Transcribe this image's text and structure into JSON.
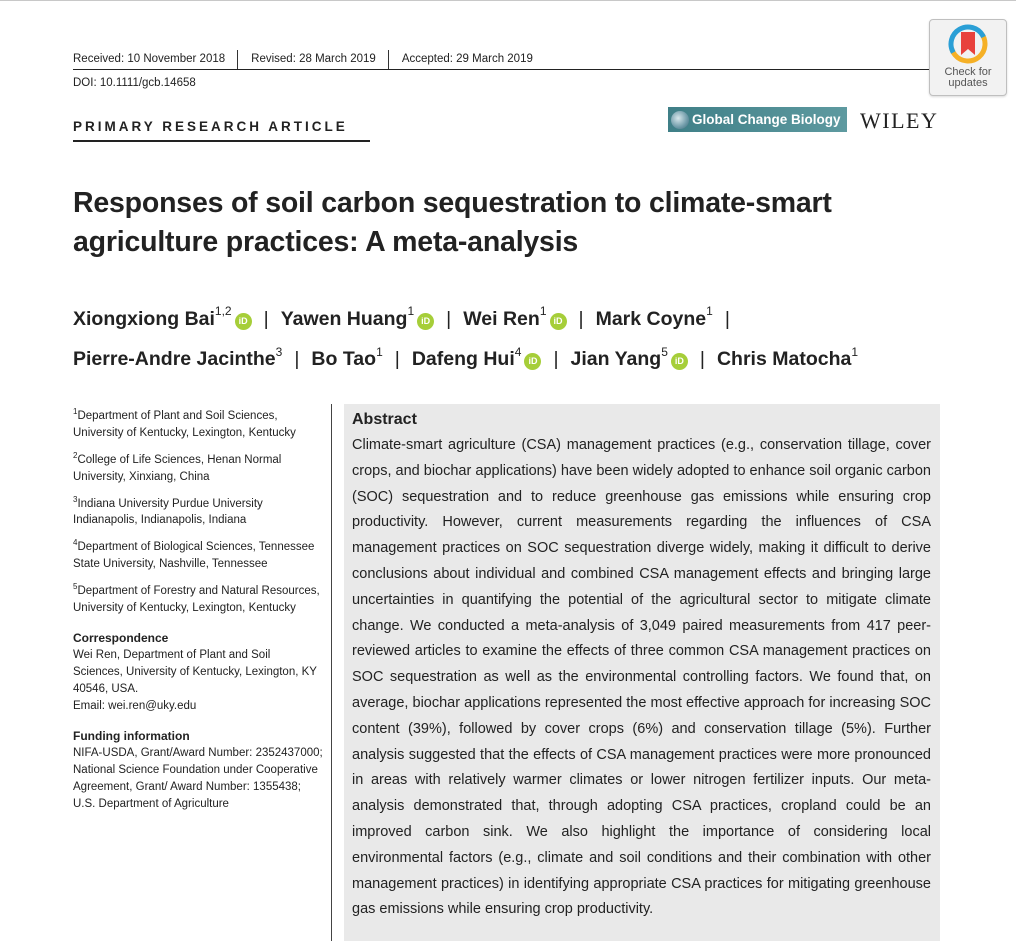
{
  "header": {
    "received": "Received: 10 November 2018",
    "revised": "Revised: 28 March 2019",
    "accepted": "Accepted: 29 March 2019",
    "doi": "DOI: 10.1111/gcb.14658",
    "check_updates_line1": "Check for",
    "check_updates_line2": "updates",
    "article_type": "PRIMARY RESEARCH ARTICLE",
    "journal": "Global Change Biology",
    "publisher": "WILEY"
  },
  "title": "Responses of soil carbon sequestration to climate-smart agriculture practices: A meta-analysis",
  "authors": [
    {
      "name": "Xiongxiong Bai",
      "sup": "1,2",
      "orcid": true
    },
    {
      "name": "Yawen Huang",
      "sup": "1",
      "orcid": true
    },
    {
      "name": "Wei Ren",
      "sup": "1",
      "orcid": true
    },
    {
      "name": "Mark Coyne",
      "sup": "1",
      "orcid": false
    },
    {
      "name": "Pierre-Andre Jacinthe",
      "sup": "3",
      "orcid": false
    },
    {
      "name": "Bo Tao",
      "sup": "1",
      "orcid": false
    },
    {
      "name": "Dafeng Hui",
      "sup": "4",
      "orcid": true
    },
    {
      "name": "Jian Yang",
      "sup": "5",
      "orcid": true
    },
    {
      "name": "Chris Matocha",
      "sup": "1",
      "orcid": false
    }
  ],
  "affiliations": [
    {
      "num": "1",
      "text": "Department of Plant and Soil Sciences, University of Kentucky, Lexington, Kentucky"
    },
    {
      "num": "2",
      "text": "College of Life Sciences, Henan Normal University, Xinxiang, China"
    },
    {
      "num": "3",
      "text": "Indiana University Purdue University Indianapolis, Indianapolis, Indiana"
    },
    {
      "num": "4",
      "text": "Department of Biological Sciences, Tennessee State University, Nashville, Tennessee"
    },
    {
      "num": "5",
      "text": "Department of Forestry and Natural Resources, University of Kentucky, Lexington, Kentucky"
    }
  ],
  "correspondence": {
    "heading": "Correspondence",
    "text": "Wei Ren, Department of Plant and Soil Sciences, University of Kentucky, Lexington, KY 40546, USA.",
    "email": "Email: wei.ren@uky.edu"
  },
  "funding": {
    "heading": "Funding information",
    "text": "NIFA-USDA, Grant/Award Number: 2352437000; National Science Foundation under Cooperative Agreement, Grant/ Award Number: 1355438; U.S. Department of Agriculture"
  },
  "abstract": {
    "heading": "Abstract",
    "text": "Climate-smart agriculture (CSA) management practices (e.g., conservation tillage, cover crops, and biochar applications) have been widely adopted to enhance soil organic carbon (SOC) sequestration and to reduce greenhouse gas emissions while ensuring crop productivity. However, current measurements regarding the influ­ences of CSA management practices on SOC sequestration diverge widely, making it difficult to derive conclusions about individual and combined CSA management ef­fects and bringing large uncertainties in quantifying the potential of the agricultural sector to mitigate climate change. We conducted a meta-analysis of 3,049 paired measurements from 417 peer-reviewed articles to examine the effects of three com­mon CSA management practices on SOC sequestration as well as the environmental controlling factors. We found that, on average, biochar applications represented the most effective approach for increasing SOC content (39%), followed by cover crops (6%) and conservation tillage (5%). Further analysis suggested that the effects of CSA management practices were more pronounced in areas with relatively warmer climates or lower nitrogen fertilizer inputs. Our meta-analysis demonstrated that, through adopting CSA practices, cropland could be an improved carbon sink. We also highlight the importance of considering local environmental factors (e.g., climate and soil conditions and their combination with other management practices) in identify­ing appropriate CSA practices for mitigating greenhouse gas emissions while ensur­ing crop productivity."
  },
  "colors": {
    "orcid": "#a6ce39",
    "journal_logo": "#4f8b92",
    "abstract_bg": "#e9e9e9"
  },
  "icons": [
    "check-for-updates-icon",
    "orcid-icon",
    "journal-globe-icon"
  ]
}
